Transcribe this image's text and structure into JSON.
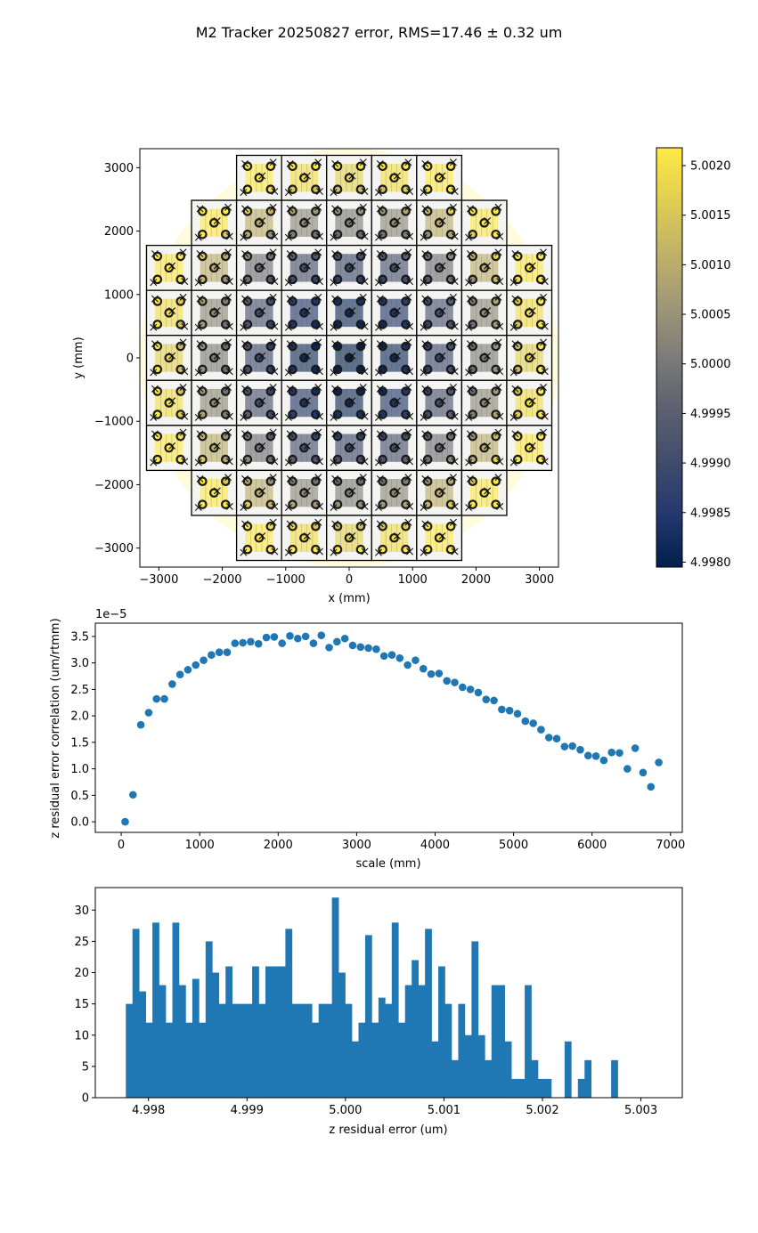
{
  "figure": {
    "title": "M2 Tracker 20250827 error, RMS=17.46 ± 0.32 um"
  },
  "colors": {
    "series": "#1f77b4",
    "axes": "#000000",
    "cmap_low": "#00204c",
    "cmap_mid": "#7c7b78",
    "cmap_high": "#ffe945"
  },
  "chart_data": [
    {
      "type": "heatmap",
      "id": "map",
      "xlabel": "x (mm)",
      "ylabel": "y (mm)",
      "xlim": [
        -3300,
        3300
      ],
      "ylim": [
        -3300,
        3300
      ],
      "xticks": [
        -3000,
        -2000,
        -1000,
        0,
        1000,
        2000,
        3000
      ],
      "yticks": [
        -3000,
        -2000,
        -1000,
        0,
        1000,
        2000,
        3000
      ],
      "xtick_labels": [
        "−3000",
        "−2000",
        "−1000",
        "0",
        "1000",
        "2000",
        "3000"
      ],
      "ytick_labels": [
        "−3000",
        "−2000",
        "−1000",
        "0",
        "1000",
        "2000",
        "3000"
      ],
      "colormap": "cividis",
      "color_range": [
        4.99795,
        5.00218
      ],
      "colorbar_ticks": [
        4.998,
        4.9985,
        4.999,
        4.9995,
        5.0,
        5.0005,
        5.001,
        5.0015,
        5.002
      ],
      "colorbar_labels": [
        "4.9980",
        "4.9985",
        "4.9990",
        "4.9995",
        "5.0000",
        "5.0005",
        "5.0010",
        "5.0015",
        "5.0020"
      ],
      "tile_size_mm": 710,
      "tile_rows": [
        {
          "y": 2840,
          "x_from": -1420,
          "x_to": 1420
        },
        {
          "y": 2130,
          "x_from": -2130,
          "x_to": 2130
        },
        {
          "y": 1420,
          "x_from": -2840,
          "x_to": 2840
        },
        {
          "y": 710,
          "x_from": -2840,
          "x_to": 2840
        },
        {
          "y": 0,
          "x_from": -2840,
          "x_to": 2840
        },
        {
          "y": -710,
          "x_from": -2840,
          "x_to": 2840
        },
        {
          "y": -1420,
          "x_from": -2840,
          "x_to": 2840
        },
        {
          "y": -2130,
          "x_from": -2130,
          "x_to": 2130
        },
        {
          "y": -2840,
          "x_from": -1420,
          "x_to": 1420
        }
      ],
      "error_model": "z error rises from about 4.9980 um at the center to about 5.0021 um at radius 3000 mm"
    },
    {
      "type": "scatter",
      "id": "corr",
      "xlabel": "scale (mm)",
      "ylabel": "z residual error correlation (um/rtmm)",
      "multiplier_label": "1e−5",
      "xlim": [
        -330,
        7150
      ],
      "ylim": [
        -2e-06,
        3.75e-05
      ],
      "xticks": [
        0,
        1000,
        2000,
        3000,
        4000,
        5000,
        6000,
        7000
      ],
      "xtick_labels": [
        "0",
        "1000",
        "2000",
        "3000",
        "4000",
        "5000",
        "6000",
        "7000"
      ],
      "yticks": [
        0,
        5e-06,
        1e-05,
        1.5e-05,
        2e-05,
        2.5e-05,
        3e-05,
        3.5e-05
      ],
      "ytick_labels": [
        "0.0",
        "0.5",
        "1.0",
        "1.5",
        "2.0",
        "2.5",
        "3.0",
        "3.5"
      ],
      "x": [
        50,
        150,
        250,
        350,
        450,
        550,
        650,
        750,
        850,
        950,
        1050,
        1150,
        1250,
        1350,
        1450,
        1550,
        1650,
        1750,
        1850,
        1950,
        2050,
        2150,
        2250,
        2350,
        2450,
        2550,
        2650,
        2750,
        2850,
        2950,
        3050,
        3150,
        3250,
        3350,
        3450,
        3550,
        3650,
        3750,
        3850,
        3950,
        4050,
        4150,
        4250,
        4350,
        4450,
        4550,
        4650,
        4750,
        4850,
        4950,
        5050,
        5150,
        5250,
        5350,
        5450,
        5550,
        5650,
        5750,
        5850,
        5950,
        6050,
        6150,
        6250,
        6350,
        6450,
        6550,
        6650,
        6750,
        6850
      ],
      "y": [
        0.0,
        5.1e-06,
        1.83e-05,
        2.06e-05,
        2.32e-05,
        2.32e-05,
        2.6e-05,
        2.78e-05,
        2.87e-05,
        2.96e-05,
        3.05e-05,
        3.15e-05,
        3.2e-05,
        3.2e-05,
        3.37e-05,
        3.38e-05,
        3.4e-05,
        3.36e-05,
        3.48e-05,
        3.49e-05,
        3.37e-05,
        3.51e-05,
        3.46e-05,
        3.5e-05,
        3.37e-05,
        3.52e-05,
        3.29e-05,
        3.4e-05,
        3.46e-05,
        3.33e-05,
        3.3e-05,
        3.28e-05,
        3.26e-05,
        3.13e-05,
        3.15e-05,
        3.09e-05,
        2.96e-05,
        3.05e-05,
        2.89e-05,
        2.79e-05,
        2.8e-05,
        2.66e-05,
        2.63e-05,
        2.54e-05,
        2.5e-05,
        2.44e-05,
        2.31e-05,
        2.29e-05,
        2.12e-05,
        2.1e-05,
        2.04e-05,
        1.9e-05,
        1.86e-05,
        1.74e-05,
        1.59e-05,
        1.57e-05,
        1.42e-05,
        1.43e-05,
        1.36e-05,
        1.25e-05,
        1.24e-05,
        1.16e-05,
        1.31e-05,
        1.3e-05,
        1e-05,
        1.39e-05,
        9.3e-06,
        6.6e-06,
        1.12e-05
      ]
    },
    {
      "type": "bar",
      "id": "hist",
      "xlabel": "z residual error (um)",
      "xlim": [
        4.99746,
        5.00342
      ],
      "ylim": [
        0,
        33.6
      ],
      "xticks": [
        4.998,
        4.999,
        5.0,
        5.001,
        5.002,
        5.003
      ],
      "xtick_labels": [
        "4.998",
        "4.999",
        "5.000",
        "5.001",
        "5.002",
        "5.003"
      ],
      "yticks": [
        0,
        5,
        10,
        15,
        20,
        25,
        30
      ],
      "ytick_labels": [
        "0",
        "5",
        "10",
        "15",
        "20",
        "25",
        "30"
      ],
      "bin_start": 4.99777,
      "bin_width": 6.75e-05,
      "counts": [
        15,
        27,
        17,
        12,
        28,
        18,
        12,
        28,
        18,
        12,
        19,
        12,
        25,
        20,
        15,
        21,
        15,
        15,
        15,
        21,
        15,
        21,
        21,
        21,
        27,
        15,
        15,
        15,
        12,
        15,
        15,
        32,
        20,
        15,
        9,
        12,
        26,
        12,
        16,
        15,
        28,
        12,
        18,
        22,
        18,
        27,
        9,
        21,
        15,
        6,
        15,
        10,
        25,
        10,
        6,
        18,
        18,
        9,
        3,
        3,
        18,
        6,
        3,
        3,
        0,
        0,
        9,
        0,
        3,
        6,
        0,
        0,
        0,
        6
      ]
    }
  ]
}
